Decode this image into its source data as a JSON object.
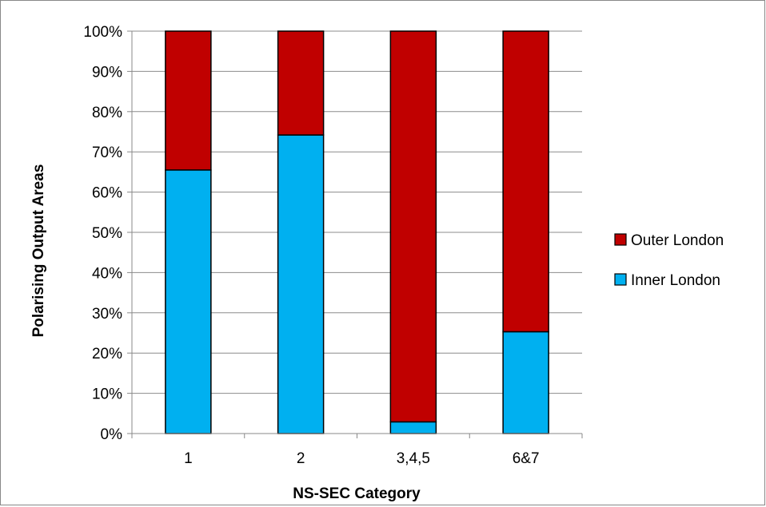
{
  "chart_data": {
    "type": "bar",
    "stacked": true,
    "percent_stacked": true,
    "title": "",
    "xlabel": "NS-SEC Category",
    "ylabel": "Polarising Output Areas",
    "categories": [
      "1",
      "2",
      "3,4,5",
      "6&7"
    ],
    "ylim": [
      0,
      100
    ],
    "yticks": [
      "0%",
      "10%",
      "20%",
      "30%",
      "40%",
      "50%",
      "60%",
      "70%",
      "80%",
      "90%",
      "100%"
    ],
    "grid": true,
    "legend_position": "right",
    "series": [
      {
        "name": "Inner London",
        "values": [
          65.5,
          74.2,
          2.9,
          25.3
        ],
        "color": "#00B0F0"
      },
      {
        "name": "Outer London",
        "values": [
          34.5,
          25.8,
          97.1,
          74.7
        ],
        "color": "#C00000"
      }
    ],
    "legend": [
      {
        "name": "Outer London",
        "color": "#C00000"
      },
      {
        "name": "Inner London",
        "color": "#00B0F0"
      }
    ]
  }
}
